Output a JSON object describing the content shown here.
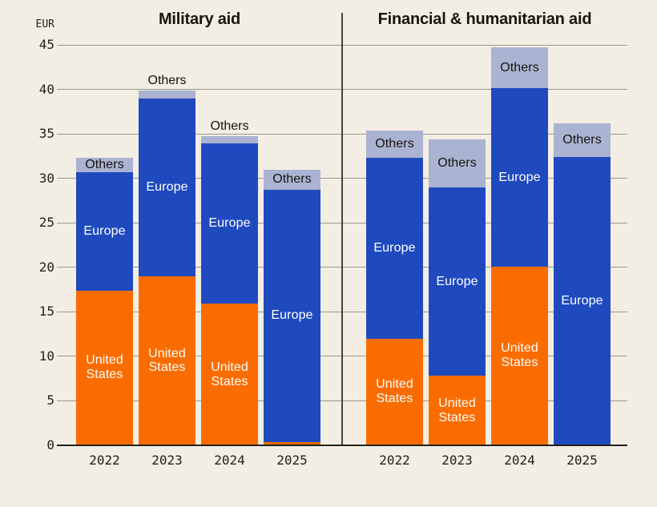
{
  "unit_label": "EUR",
  "axis": {
    "ymin": 0,
    "ymax": 45,
    "tick_step": 5,
    "tick_labels": [
      "45",
      "40",
      "35",
      "30",
      "25",
      "20",
      "15",
      "10",
      "5",
      "0"
    ],
    "grid": true
  },
  "colors": {
    "united_states": "#FB6C00",
    "europe": "#1F4ABF",
    "others": "#ABB3D2",
    "background": "#F2EEE3",
    "gridline": "#9B968B",
    "axis_line": "#23211B",
    "divider_line": "#45423A",
    "label_dark": "#15140F",
    "label_light": "#FFFFFF"
  },
  "chart_data": [
    {
      "type": "bar",
      "stacked": true,
      "title": "Military aid",
      "ylabel": "EUR",
      "ylim": [
        0,
        45
      ],
      "legend_position": "in-bar-labels",
      "categories": [
        "2022",
        "2023",
        "2024",
        "2025"
      ],
      "series": [
        {
          "name": "United States",
          "color_key": "united_states",
          "values": [
            17.4,
            19.0,
            15.9,
            0.4
          ]
        },
        {
          "name": "Europe",
          "color_key": "europe",
          "values": [
            13.3,
            20.0,
            18.0,
            28.3
          ]
        },
        {
          "name": "Others",
          "color_key": "others",
          "values": [
            1.6,
            0.9,
            0.8,
            2.3
          ]
        }
      ],
      "totals": [
        32.3,
        39.9,
        34.7,
        31.0
      ]
    },
    {
      "type": "bar",
      "stacked": true,
      "title": "Financial & humanitarian aid",
      "ylabel": "EUR",
      "ylim": [
        0,
        45
      ],
      "legend_position": "in-bar-labels",
      "categories": [
        "2022",
        "2023",
        "2024",
        "2025"
      ],
      "series": [
        {
          "name": "United States",
          "color_key": "united_states",
          "values": [
            12.0,
            7.8,
            20.1,
            0.0
          ]
        },
        {
          "name": "Europe",
          "color_key": "europe",
          "values": [
            20.3,
            21.2,
            20.0,
            32.4
          ]
        },
        {
          "name": "Others",
          "color_key": "others",
          "values": [
            3.1,
            5.4,
            4.6,
            3.8
          ]
        }
      ],
      "totals": [
        35.4,
        34.4,
        44.7,
        36.2
      ]
    }
  ]
}
